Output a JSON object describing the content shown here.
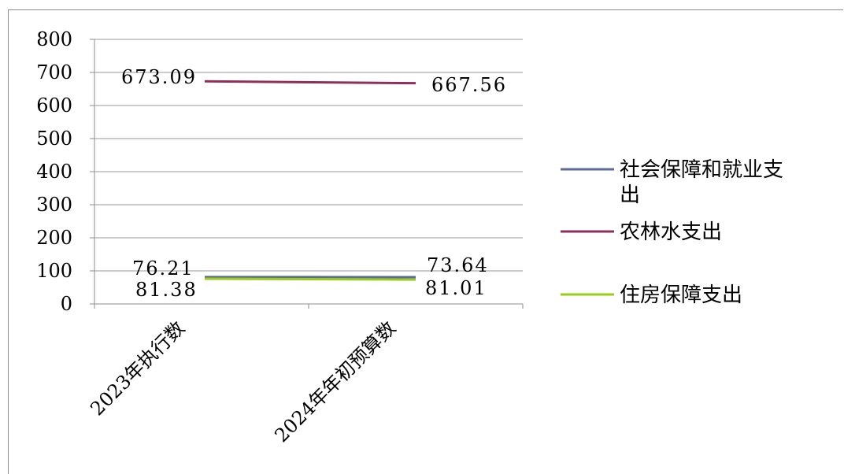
{
  "chart_data": {
    "type": "line",
    "categories": [
      "2023年执行数",
      "2024年年初预算数"
    ],
    "series": [
      {
        "name": "社会保障和就业支出",
        "values": [
          81.38,
          81.01
        ],
        "color": "#5b6a9a",
        "labels": [
          "81.38",
          "81.01"
        ]
      },
      {
        "name": "农林水支出",
        "values": [
          673.09,
          667.56
        ],
        "color": "#8e2f5c",
        "labels": [
          "673.09",
          "667.56"
        ]
      },
      {
        "name": "住房保障支出",
        "values": [
          76.21,
          73.64
        ],
        "color": "#9acd1a",
        "labels": [
          "76.21",
          "73.64"
        ]
      }
    ],
    "y_ticks": [
      "0",
      "100",
      "200",
      "300",
      "400",
      "500",
      "600",
      "700",
      "800"
    ],
    "ylim": [
      0,
      800
    ],
    "grid": true,
    "legend_position": "right"
  }
}
